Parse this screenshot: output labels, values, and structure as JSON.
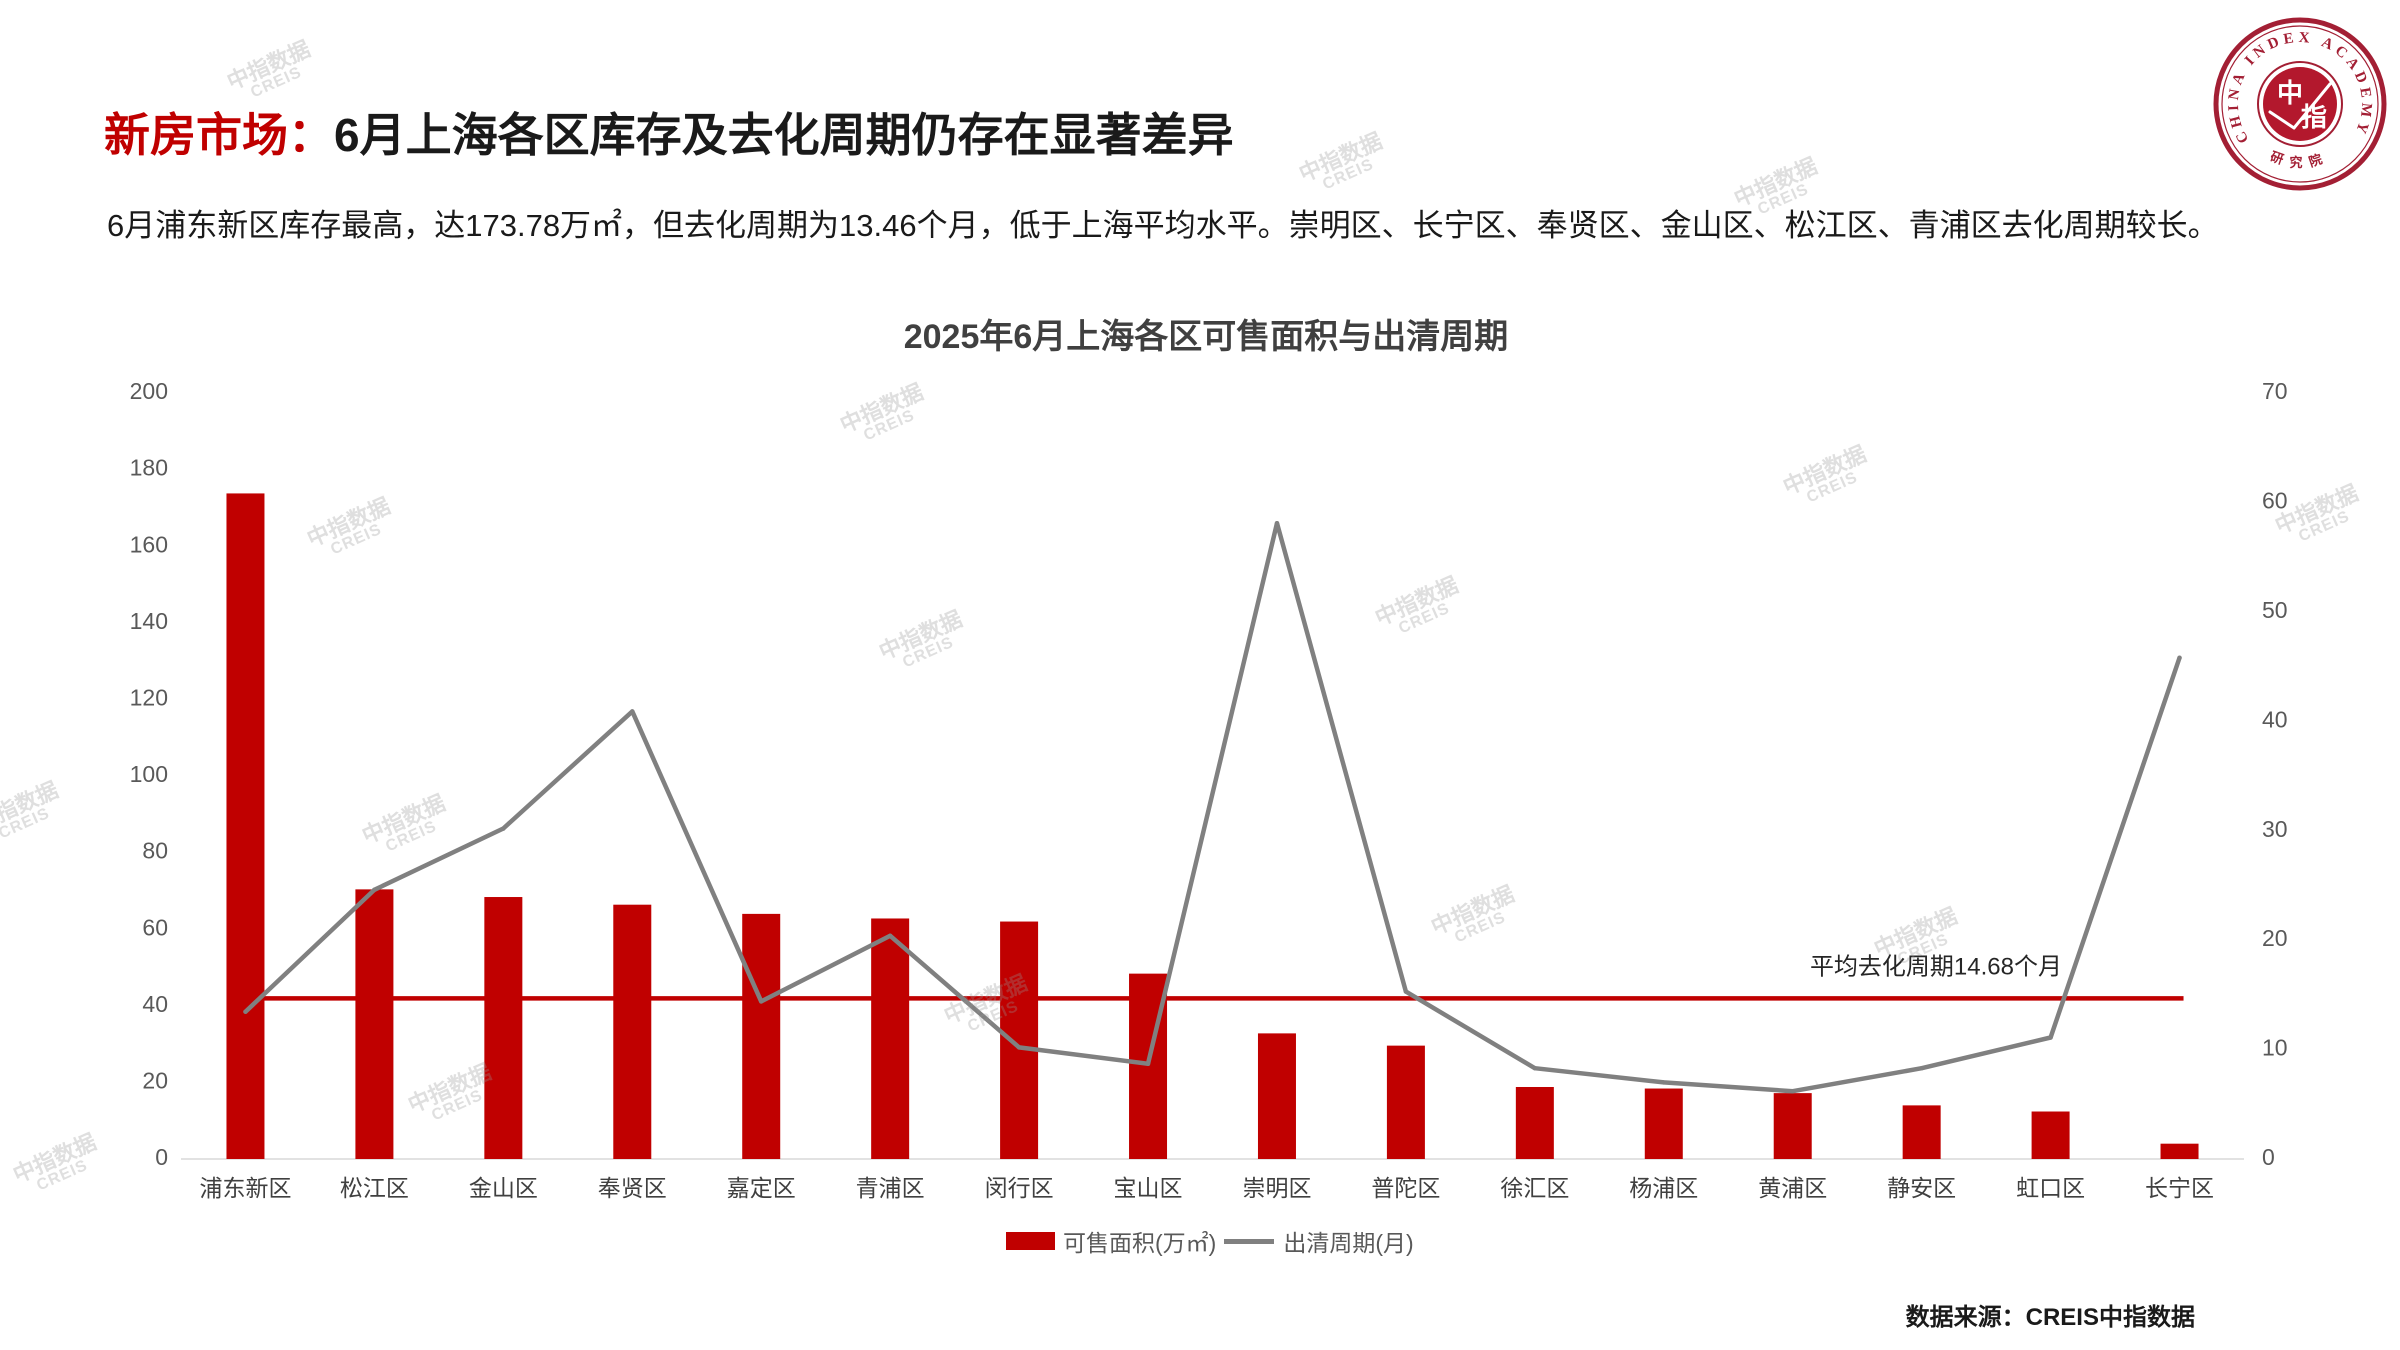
{
  "header": {
    "title_prefix": "新房市场：",
    "title_main": "6月上海各区库存及去化周期仍存在显著差异",
    "subtitle": "6月浦东新区库存最高，达173.78万㎡，但去化周期为13.46个月，低于上海平均水平。崇明区、长宁区、奉贤区、金山区、松江区、青浦区去化周期较长。"
  },
  "logo": {
    "ring_text": "CHINA INDEX ACADEMY",
    "char1": "中",
    "char2": "指",
    "bottom_text": "研究院"
  },
  "colors": {
    "bar": "#c00000",
    "line": "#808080",
    "reference_line": "#c00000",
    "title_accent": "#c00000",
    "logo": "#a31f34"
  },
  "chart_data": {
    "type": "bar",
    "title": "2025年6月上海各区可售面积与出清周期",
    "categories": [
      "浦东新区",
      "松江区",
      "金山区",
      "奉贤区",
      "嘉定区",
      "青浦区",
      "闵行区",
      "宝山区",
      "崇明区",
      "普陀区",
      "徐汇区",
      "杨浦区",
      "黄浦区",
      "静安区",
      "虹口区",
      "长宁区"
    ],
    "series": [
      {
        "name": "可售面积(万㎡)",
        "type": "bar",
        "axis": "left",
        "values": [
          173.78,
          70.4,
          68.4,
          66.4,
          64.0,
          62.8,
          62.0,
          48.4,
          32.8,
          29.6,
          18.8,
          18.4,
          17.2,
          14.0,
          12.4,
          4.0
        ]
      },
      {
        "name": "出清周期(月)",
        "type": "line",
        "axis": "right",
        "values": [
          13.46,
          24.6,
          30.2,
          40.9,
          14.4,
          20.4,
          10.2,
          8.7,
          58.1,
          15.3,
          8.3,
          7.0,
          6.2,
          8.3,
          11.1,
          45.8
        ]
      }
    ],
    "reference_line": {
      "label": "平均去化周期14.68个月",
      "value": 14.68,
      "axis": "right"
    },
    "y_left": {
      "range": [
        0,
        200
      ],
      "ticks": [
        0,
        20,
        40,
        60,
        80,
        100,
        120,
        140,
        160,
        180,
        200
      ]
    },
    "y_right": {
      "range": [
        0,
        70
      ],
      "ticks": [
        0,
        10,
        20,
        30,
        40,
        50,
        60,
        70
      ]
    },
    "grid": false,
    "legend_position": "bottom"
  },
  "source": "数据来源：CREIS中指数据",
  "watermark": {
    "line1": "中指数据",
    "line2": "CREIS"
  }
}
